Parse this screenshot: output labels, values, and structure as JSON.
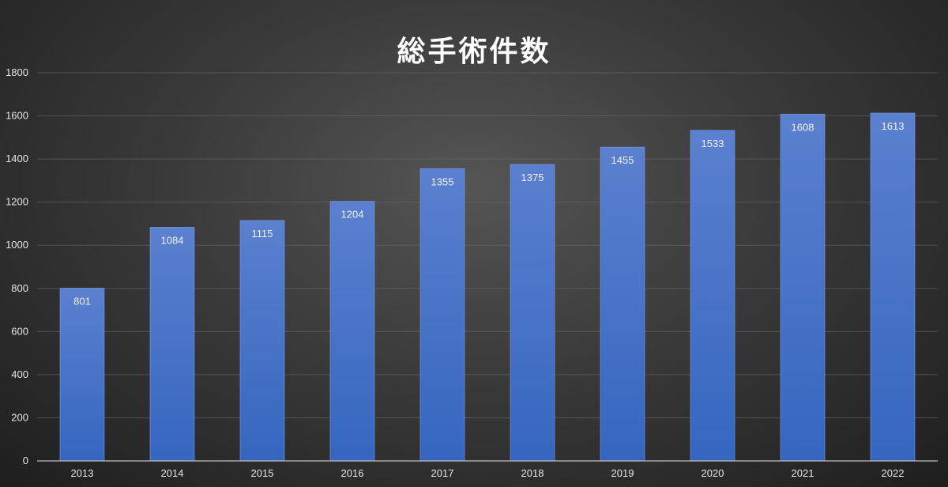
{
  "chart_data": {
    "type": "bar",
    "title": "総手術件数",
    "xlabel": "",
    "ylabel": "",
    "categories": [
      "2013",
      "2014",
      "2015",
      "2016",
      "2017",
      "2018",
      "2019",
      "2020",
      "2021",
      "2022"
    ],
    "values": [
      801,
      1084,
      1115,
      1204,
      1355,
      1375,
      1455,
      1533,
      1608,
      1613
    ],
    "ylim": [
      0,
      1800
    ],
    "yticks": [
      0,
      200,
      400,
      600,
      800,
      1000,
      1200,
      1400,
      1600,
      1800
    ],
    "grid": true,
    "data_labels": true,
    "colors": {
      "bar_top": "#5b80cf",
      "bar_bottom": "#3566bf",
      "text": "#e6e6e6",
      "title": "#ffffff",
      "grid": "#6a6a6a"
    }
  }
}
